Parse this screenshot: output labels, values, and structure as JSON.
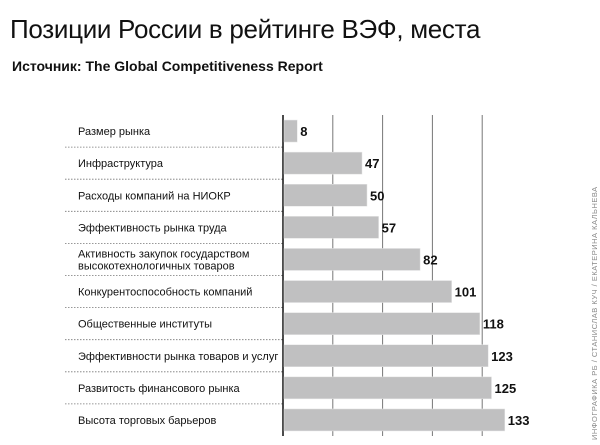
{
  "title": "Позиции России в рейтинге ВЭФ, места",
  "subtitle": "Источник: The Global Competitiveness Report",
  "credit": "ИНФОГРАФИКА РБ / СТАНИСЛАВ КУЧ / ЕКАТЕРИНА КАЛЬНЕВА",
  "chart_data": {
    "type": "bar",
    "orientation": "horizontal",
    "title": "Позиции России в рейтинге ВЭФ, места",
    "categories": [
      [
        "Размер рынка"
      ],
      [
        "Инфраструктура"
      ],
      [
        "Расходы компаний на НИОКР"
      ],
      [
        "Эффективность рынка труда"
      ],
      [
        "Активность закупок государством",
        "высокотехнологичных товаров"
      ],
      [
        "Конкурентоспособность компаний"
      ],
      [
        "Общественные институты"
      ],
      [
        "Эффективности рынка товаров и услуг"
      ],
      [
        "Развитость финансового рынка"
      ],
      [
        "Высота торговых барьеров"
      ]
    ],
    "values": [
      8,
      47,
      50,
      57,
      82,
      101,
      118,
      123,
      125,
      133
    ],
    "xlim": [
      0,
      140
    ],
    "gridlines": [
      30,
      60,
      90,
      120
    ],
    "grid": true,
    "bar_color": "#c0c0c1",
    "data_labels": true
  }
}
